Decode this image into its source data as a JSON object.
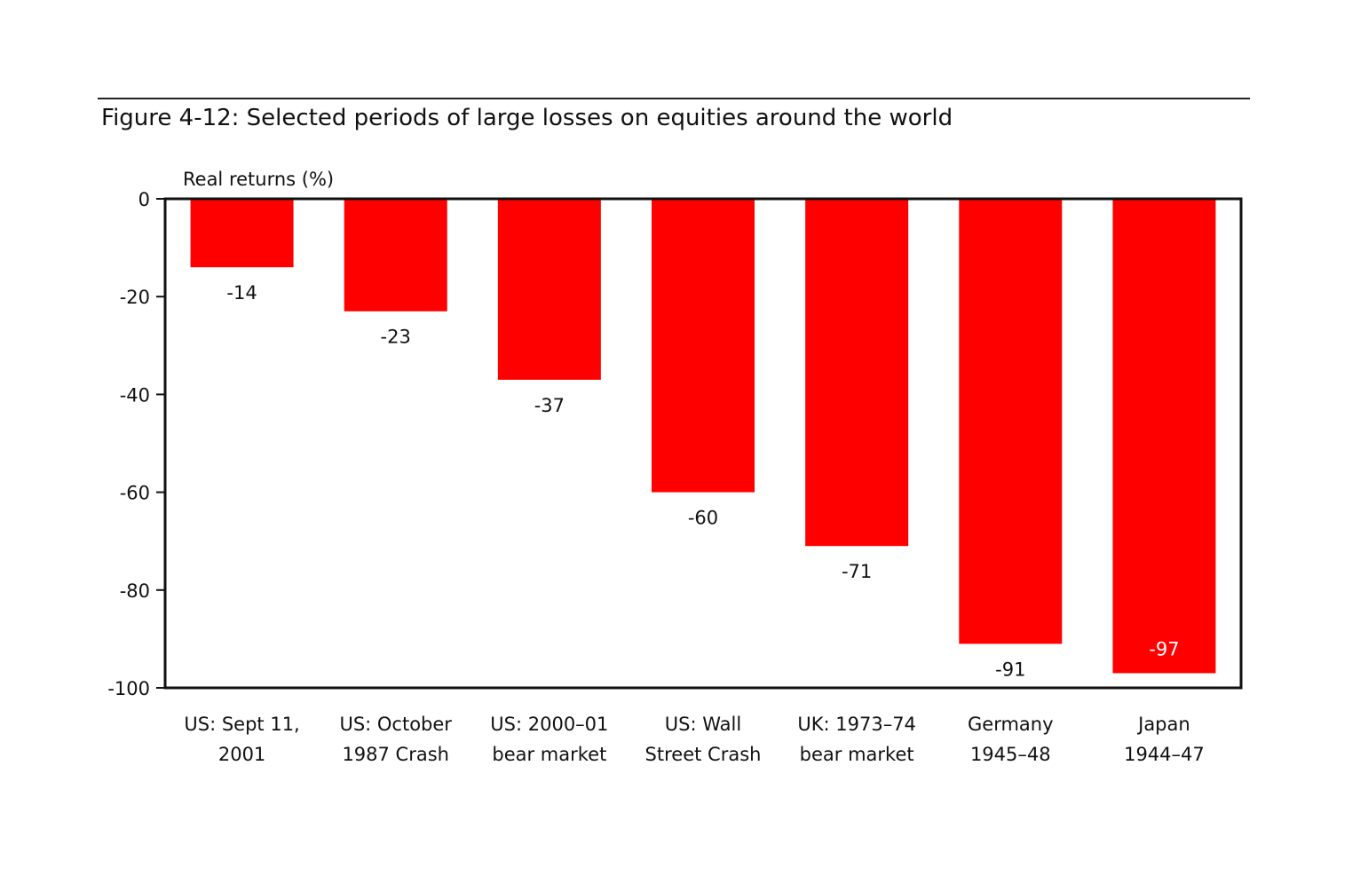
{
  "figure": {
    "title": "Figure 4-12: Selected periods of large losses on equities around the world"
  },
  "chart_data": {
    "type": "bar",
    "title": "Figure 4-12: Selected periods of large losses on equities around the world",
    "ylabel": "Real returns (%)",
    "xlabel": "",
    "categories": [
      [
        "US: Sept 11,",
        "2001"
      ],
      [
        "US: October",
        "1987 Crash"
      ],
      [
        "US: 2000–01",
        "bear market"
      ],
      [
        "US: Wall",
        "Street Crash"
      ],
      [
        "UK: 1973–74",
        "bear market"
      ],
      [
        "Germany",
        "1945–48"
      ],
      [
        "Japan",
        "1944–47"
      ]
    ],
    "values": [
      -14,
      -23,
      -37,
      -60,
      -71,
      -91,
      -97
    ],
    "data_labels": [
      "-14",
      "-23",
      "-37",
      "-60",
      "-71",
      "-91",
      "-97"
    ],
    "ylim": [
      -100,
      0
    ],
    "yticks": [
      0,
      -20,
      -40,
      -60,
      -80,
      -100
    ],
    "ytick_labels": [
      "0",
      "-20",
      "-40",
      "-60",
      "-80",
      "-100"
    ],
    "grid": false,
    "legend": "none",
    "colors": {
      "bar": "#ff0000",
      "axis": "#111111",
      "label_inside": "#ffffff",
      "label_outside": "#111111"
    }
  }
}
